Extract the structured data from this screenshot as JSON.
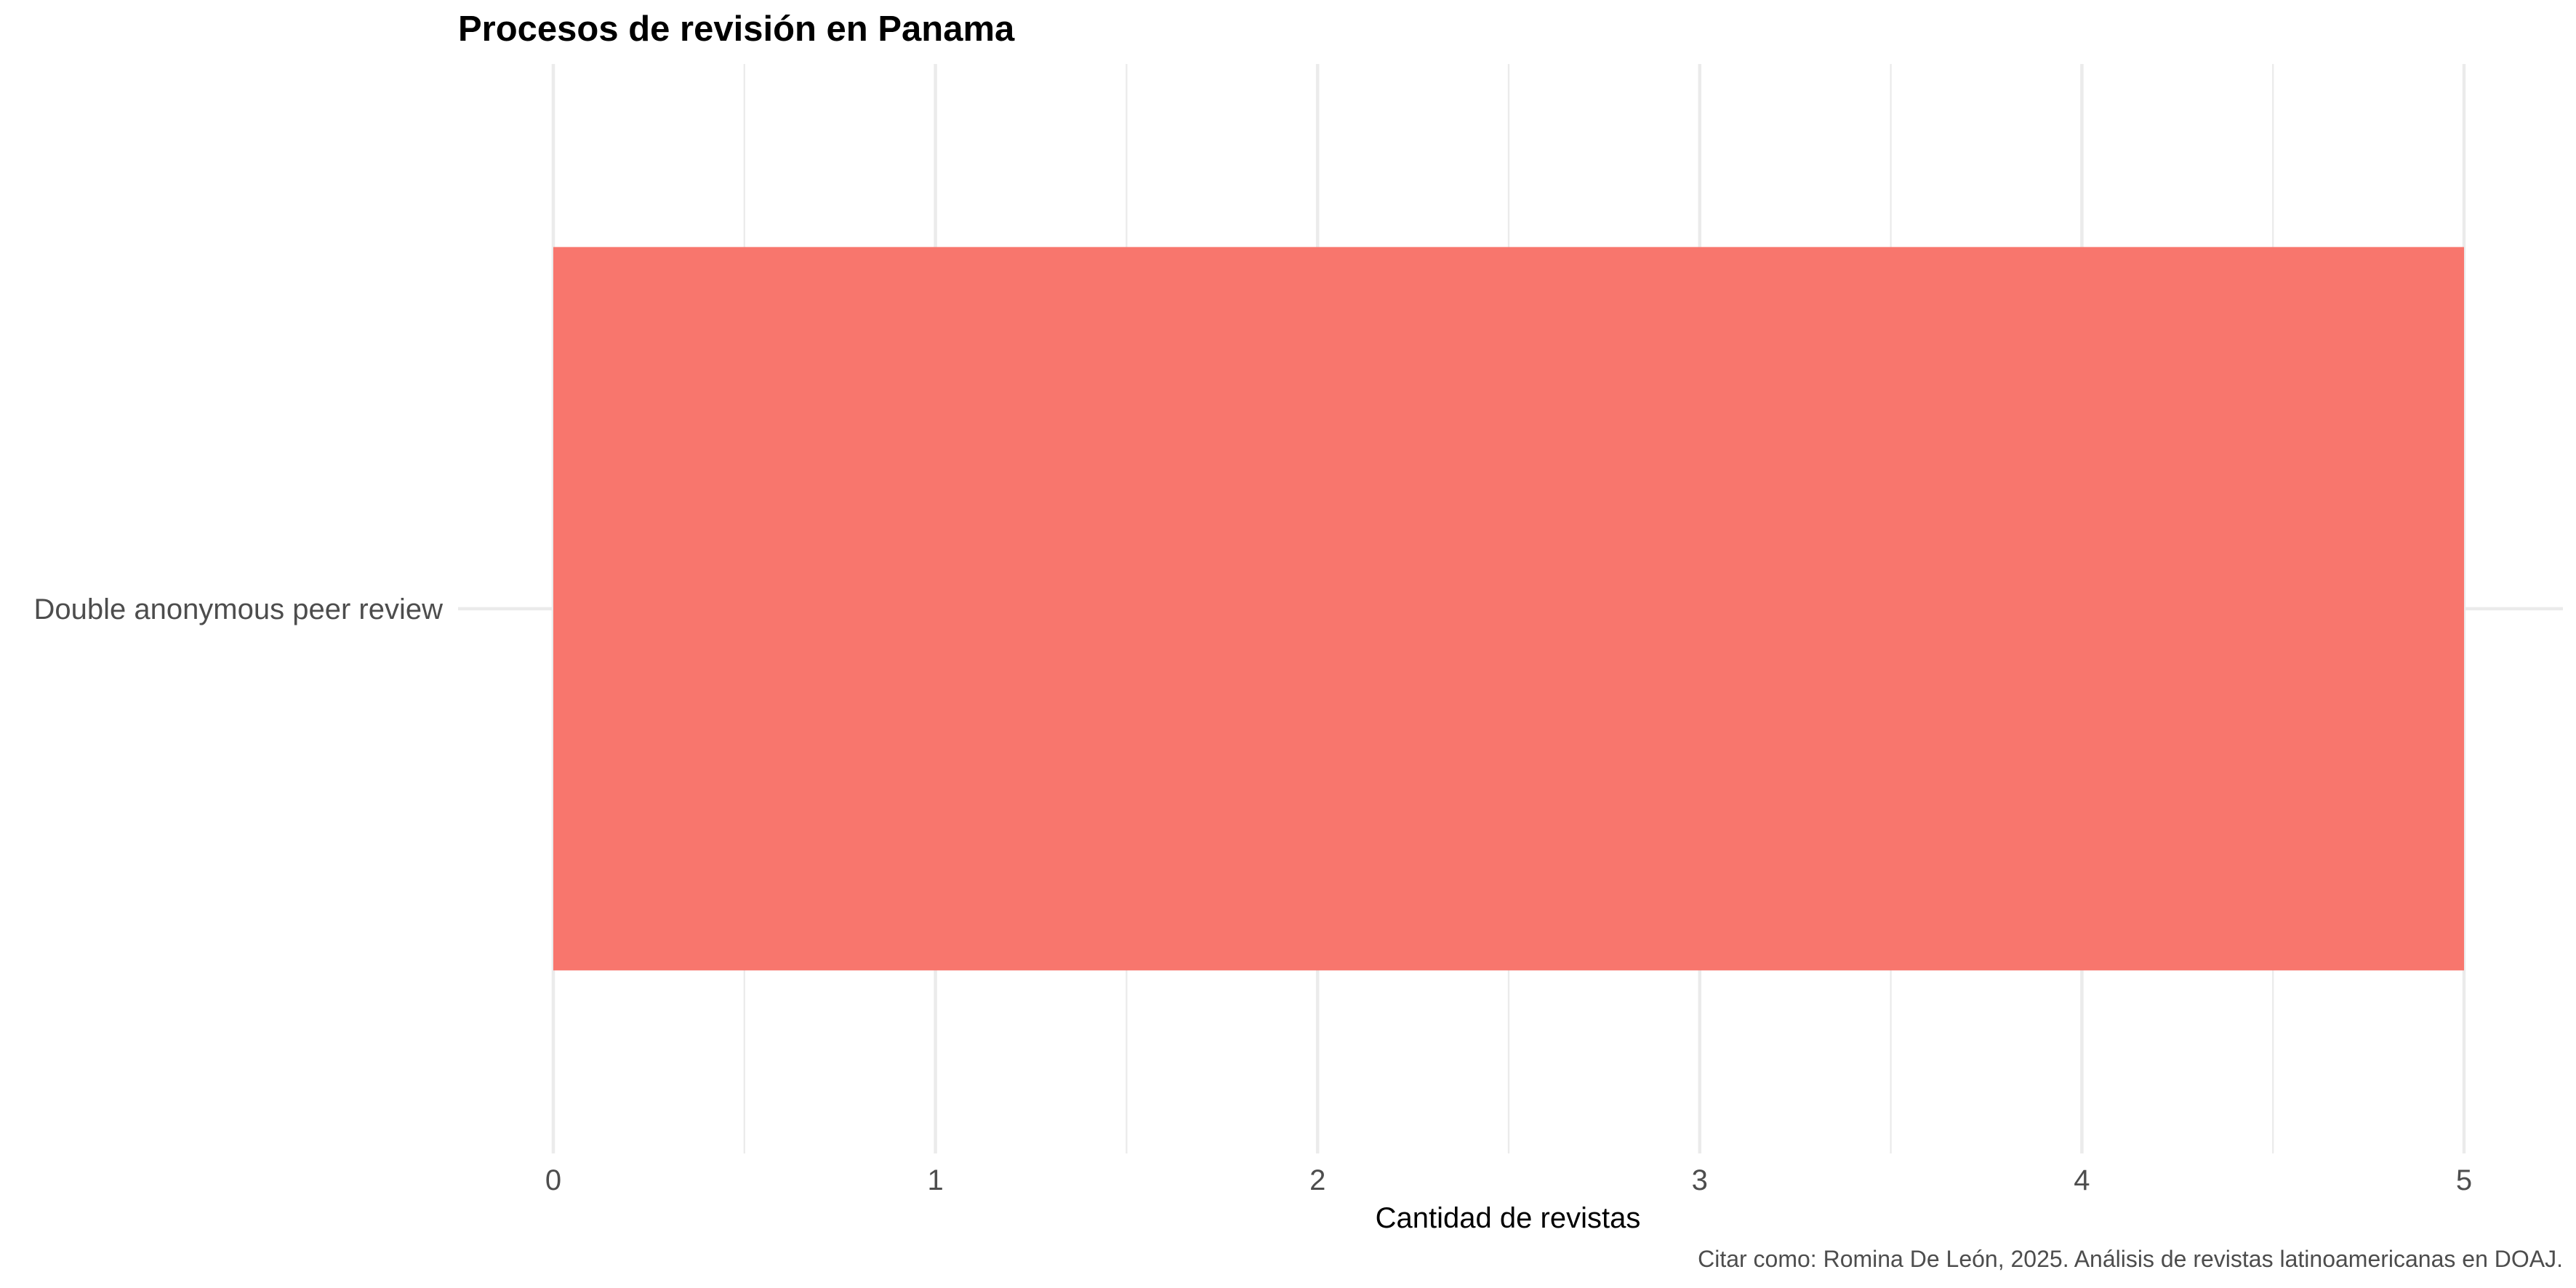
{
  "chart_data": {
    "type": "bar",
    "orientation": "horizontal",
    "title": "Procesos de revisión en Panama",
    "xlabel": "Cantidad de revistas",
    "ylabel": "",
    "categories": [
      "Double anonymous peer review"
    ],
    "values": [
      5
    ],
    "xlim": [
      0,
      5
    ],
    "x_ticks": [
      0,
      1,
      2,
      3,
      4,
      5
    ],
    "grid": true,
    "legend": "none",
    "caption": "Citar como: Romina De León, 2025. Análisis de revistas latinoamericanas en DOAJ.",
    "colors": {
      "bar": "#F8766D",
      "grid": "#EBEBEB",
      "tick_text": "#4D4D4D"
    }
  }
}
